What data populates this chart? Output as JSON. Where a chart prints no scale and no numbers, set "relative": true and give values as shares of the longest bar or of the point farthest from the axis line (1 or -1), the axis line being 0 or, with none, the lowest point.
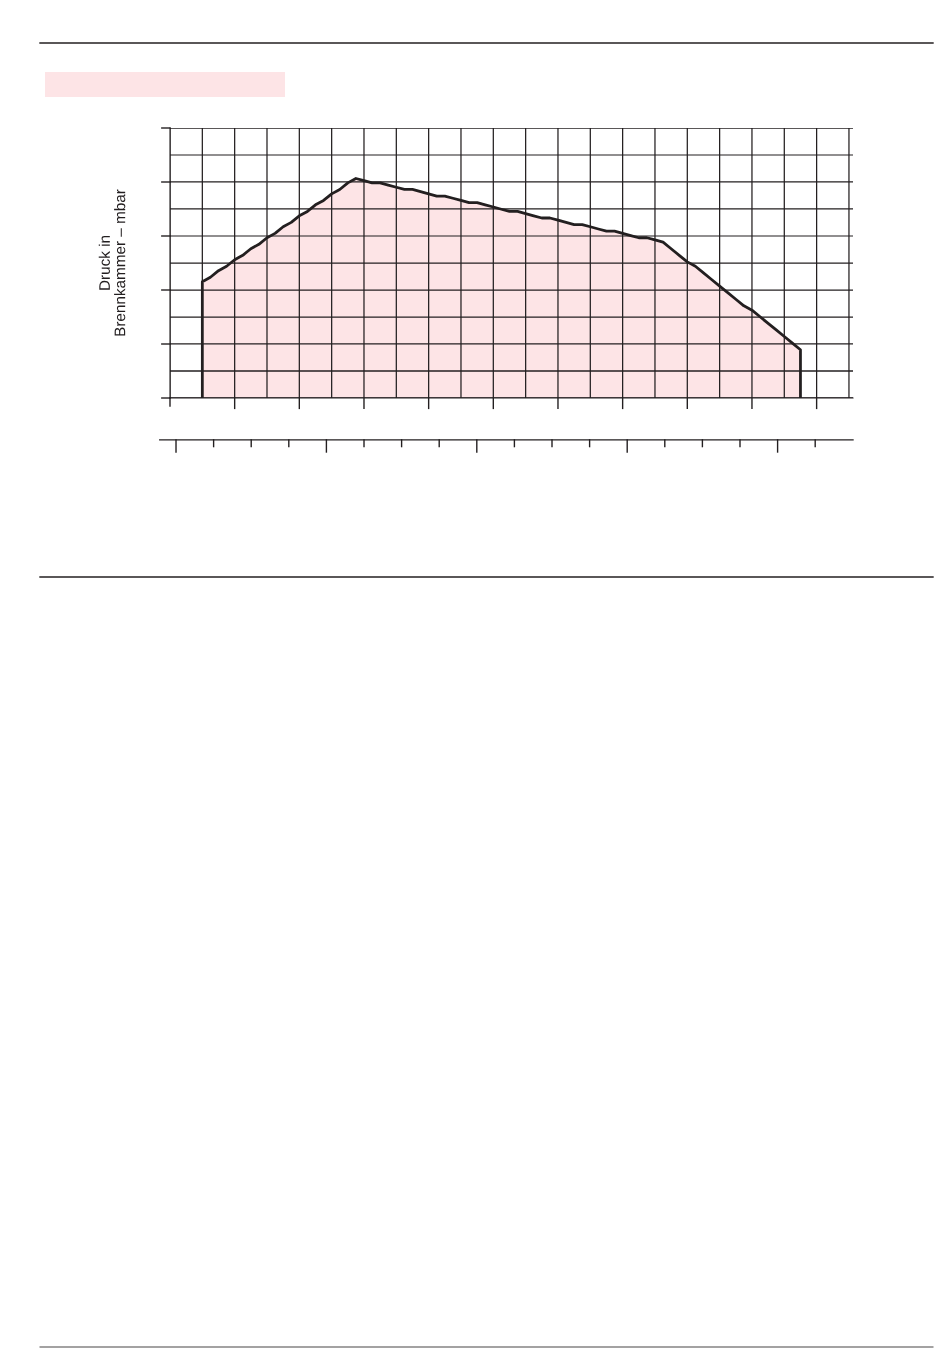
{
  "chart_data": {
    "type": "area",
    "relative": true,
    "ylabel": "Druck in\nBrennkammer – mbar",
    "categories": [
      null,
      null,
      null,
      null,
      null,
      null,
      null,
      null,
      null,
      null,
      null,
      null,
      null,
      null,
      null,
      null,
      null,
      null,
      null,
      null,
      null,
      null,
      null,
      null,
      null,
      null,
      null,
      null,
      null,
      null,
      null,
      null,
      null,
      null,
      null,
      null,
      null,
      null,
      null,
      null,
      null,
      null,
      null,
      null,
      null,
      null,
      null,
      null,
      null,
      null,
      null,
      null,
      null,
      null,
      null,
      null,
      null,
      null,
      null,
      null,
      null,
      null,
      null,
      null,
      null,
      null,
      null,
      null,
      null,
      null,
      null,
      null,
      null,
      null,
      null
    ],
    "series": [
      {
        "color": "#fde4e6",
        "values": [
          0.53,
          0.55,
          0.58,
          0.6,
          0.63,
          0.65,
          0.68,
          0.7,
          0.73,
          0.75,
          0.78,
          0.8,
          0.83,
          0.85,
          0.88,
          0.9,
          0.93,
          0.95,
          0.98,
          1,
          0.99,
          0.98,
          0.98,
          0.97,
          0.96,
          0.95,
          0.95,
          0.94,
          0.93,
          0.92,
          0.92,
          0.91,
          0.9,
          0.89,
          0.89,
          0.88,
          0.87,
          0.86,
          0.85,
          0.85,
          0.84,
          0.83,
          0.82,
          0.82,
          0.81,
          0.8,
          0.79,
          0.79,
          0.78,
          0.77,
          0.76,
          0.76,
          0.75,
          0.74,
          0.73,
          0.73,
          0.72,
          0.71,
          0.68,
          0.65,
          0.62,
          0.6,
          0.57,
          0.54,
          0.51,
          0.48,
          0.45,
          0.42,
          0.4,
          0.37,
          0.34,
          0.31,
          0.28,
          0.25,
          0.22
        ]
      }
    ],
    "grid": true
  }
}
